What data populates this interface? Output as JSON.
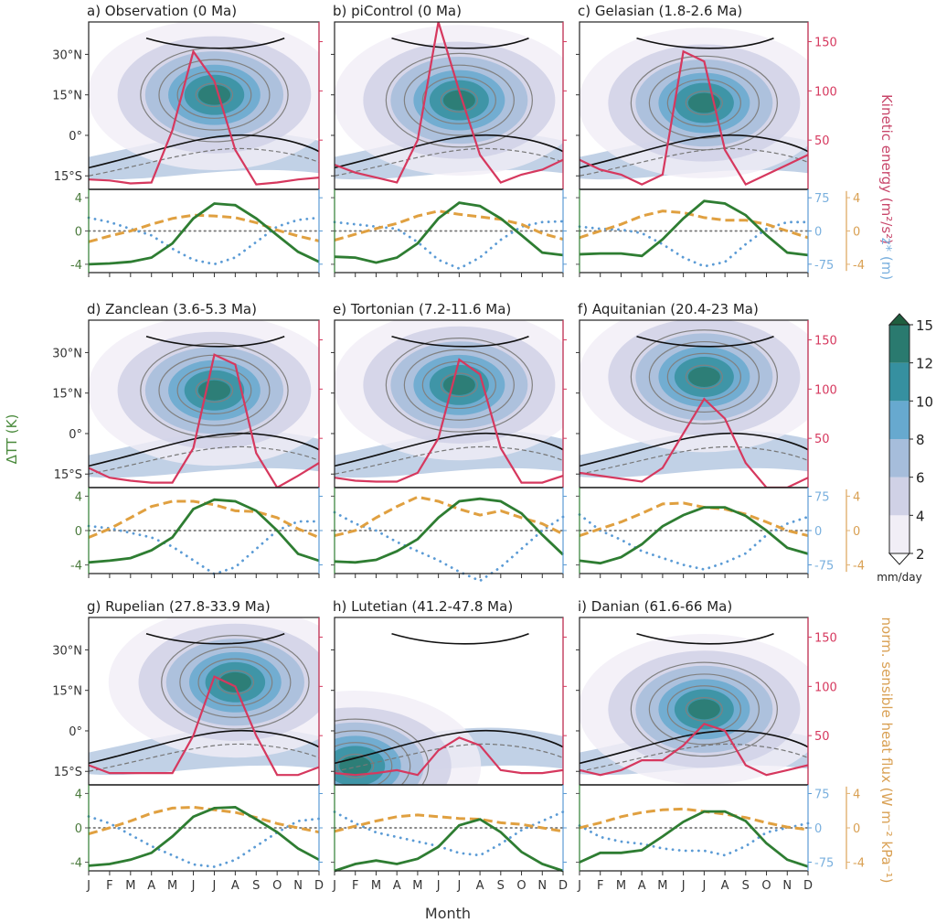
{
  "chart_data": {
    "type": "line",
    "figure_xlabel": "Month",
    "months": [
      "J",
      "F",
      "M",
      "A",
      "M",
      "J",
      "J",
      "A",
      "S",
      "O",
      "N",
      "D"
    ],
    "top_ylabel_ticks": [
      "30°N",
      "15°N",
      "0°",
      "15°S"
    ],
    "top_ylim_lat": [
      -20,
      42
    ],
    "top_lat_ticks": [
      30,
      15,
      0,
      -15
    ],
    "kinetic_energy_axis": {
      "label": "Kinetic energy (m²/s²)",
      "ticks": [
        50,
        100,
        150
      ],
      "ylim": [
        0,
        170
      ],
      "color": "#d6385e"
    },
    "delta_tt_axis": {
      "label": "ΔTT (K)",
      "ticks": [
        -4,
        0,
        4
      ],
      "ylim": [
        -5,
        5
      ],
      "color": "#2e7d32"
    },
    "zstar_axis": {
      "label": "z* (m)",
      "ticks": [
        -75,
        0,
        75
      ],
      "ylim": [
        -94,
        94
      ],
      "color": "#5b9bd5"
    },
    "sensible_heat_axis": {
      "label": "norm. sensible heat flux (W m⁻² kPa⁻¹)",
      "ticks": [
        -4,
        0,
        4
      ],
      "ylim": [
        -5,
        5
      ],
      "color": "#e0a040"
    },
    "colorbar": {
      "label": "mm/day",
      "ticks": [
        2,
        4,
        6,
        8,
        10,
        12,
        15
      ],
      "levels": [
        2,
        4,
        6,
        8,
        10,
        12,
        15
      ],
      "colors": [
        "#f1eef6",
        "#d0d1e6",
        "#a6bddb",
        "#67a9cf",
        "#3690a0",
        "#2a7a6f",
        "#1f5e3f"
      ]
    },
    "panels": [
      {
        "id": "a",
        "title": "a) Observation (0 Ma)",
        "kinetic_energy": [
          10,
          9,
          6,
          7,
          60,
          140,
          110,
          40,
          5,
          7,
          10,
          12
        ],
        "delta_tt": [
          -4.0,
          -3.9,
          -3.7,
          -3.2,
          -1.5,
          1.5,
          3.3,
          3.1,
          1.5,
          -0.5,
          -2.5,
          -3.7
        ],
        "zstar": [
          30,
          20,
          5,
          -10,
          -40,
          -65,
          -75,
          -60,
          -25,
          10,
          25,
          30
        ],
        "sensible_heat": [
          -1.3,
          -0.6,
          0,
          0.8,
          1.5,
          1.9,
          1.8,
          1.6,
          1.0,
          0.1,
          -0.6,
          -1.2
        ],
        "precip_peak": [
          15,
          7
        ]
      },
      {
        "id": "b",
        "title": "b) piControl (0 Ma)",
        "kinetic_energy": [
          25,
          17,
          12,
          7,
          50,
          170,
          100,
          35,
          7,
          15,
          20,
          30
        ],
        "delta_tt": [
          -3.1,
          -3.2,
          -3.8,
          -3.2,
          -1.5,
          1.5,
          3.4,
          3.0,
          1.5,
          -0.5,
          -2.6,
          -2.9
        ],
        "zstar": [
          20,
          15,
          10,
          5,
          -25,
          -65,
          -85,
          -60,
          -20,
          10,
          20,
          22
        ],
        "sensible_heat": [
          -1.1,
          -0.4,
          0.3,
          0.9,
          1.8,
          2.4,
          2.0,
          1.7,
          1.4,
          0.8,
          -0.3,
          -1.0
        ],
        "precip_peak": [
          13,
          7
        ]
      },
      {
        "id": "c",
        "title": "c) Gelasian (1.8-2.6 Ma)",
        "kinetic_energy": [
          30,
          20,
          15,
          5,
          15,
          140,
          130,
          40,
          5,
          15,
          25,
          35
        ],
        "delta_tt": [
          -2.8,
          -2.7,
          -2.7,
          -3.0,
          -1.0,
          1.5,
          3.6,
          3.3,
          1.9,
          -0.5,
          -2.6,
          -2.9
        ],
        "zstar": [
          10,
          5,
          3,
          -5,
          -30,
          -60,
          -80,
          -70,
          -30,
          5,
          20,
          20
        ],
        "sensible_heat": [
          -0.8,
          0.0,
          0.8,
          1.8,
          2.4,
          2.2,
          1.6,
          1.3,
          1.3,
          0.8,
          0.0,
          -0.8
        ],
        "precip_peak": [
          12,
          7
        ]
      },
      {
        "id": "d",
        "title": "d) Zanclean (3.6-5.3 Ma)",
        "kinetic_energy": [
          20,
          10,
          7,
          5,
          5,
          40,
          135,
          125,
          35,
          0,
          12,
          25
        ],
        "delta_tt": [
          -3.7,
          -3.5,
          -3.2,
          -2.3,
          -0.8,
          2.5,
          3.6,
          3.4,
          2.3,
          0.0,
          -2.7,
          -3.5
        ],
        "zstar": [
          10,
          5,
          -5,
          -15,
          -35,
          -65,
          -95,
          -80,
          -40,
          0,
          20,
          20
        ],
        "sensible_heat": [
          -0.8,
          0.2,
          1.5,
          2.8,
          3.4,
          3.4,
          3.0,
          2.3,
          2.2,
          1.5,
          0.2,
          -0.8
        ],
        "precip_peak": [
          16,
          7
        ]
      },
      {
        "id": "e",
        "title": "e) Tortonian (7.2-11.6 Ma)",
        "kinetic_energy": [
          10,
          7,
          6,
          6,
          15,
          50,
          130,
          115,
          40,
          5,
          5,
          12
        ],
        "delta_tt": [
          -3.6,
          -3.7,
          -3.4,
          -2.4,
          -1.0,
          1.5,
          3.4,
          3.7,
          3.4,
          2.0,
          -0.5,
          -2.8
        ],
        "zstar": [
          40,
          15,
          0,
          -25,
          -45,
          -65,
          -90,
          -110,
          -80,
          -40,
          0,
          30
        ],
        "sensible_heat": [
          -0.6,
          0.0,
          1.5,
          2.8,
          3.9,
          3.4,
          2.5,
          1.8,
          2.3,
          1.5,
          0.8,
          -0.4
        ],
        "precip_peak": [
          18,
          7
        ]
      },
      {
        "id": "f",
        "title": "f) Aquitanian (20.4-23 Ma)",
        "kinetic_energy": [
          15,
          12,
          9,
          6,
          20,
          55,
          90,
          70,
          25,
          0,
          0,
          10
        ],
        "delta_tt": [
          -3.5,
          -3.8,
          -3.1,
          -1.6,
          0.5,
          1.8,
          2.7,
          2.7,
          1.7,
          0.0,
          -2.0,
          -2.7
        ],
        "zstar": [
          35,
          0,
          -20,
          -45,
          -60,
          -75,
          -85,
          -70,
          -50,
          -10,
          15,
          30
        ],
        "sensible_heat": [
          -0.6,
          0.2,
          1.0,
          2.0,
          3.1,
          3.2,
          2.7,
          2.5,
          1.9,
          1.0,
          0.0,
          -0.6
        ],
        "precip_peak": [
          21,
          7
        ]
      },
      {
        "id": "g",
        "title": "g) Rupelian (27.8-33.9 Ma)",
        "kinetic_energy": [
          20,
          12,
          12,
          12,
          12,
          50,
          110,
          100,
          50,
          10,
          10,
          18
        ],
        "delta_tt": [
          -4.4,
          -4.2,
          -3.7,
          -2.9,
          -1.0,
          1.3,
          2.3,
          2.4,
          1.0,
          -0.5,
          -2.4,
          -3.7
        ],
        "zstar": [
          25,
          10,
          -15,
          -40,
          -60,
          -80,
          -85,
          -70,
          -40,
          -10,
          15,
          20
        ],
        "sensible_heat": [
          -0.7,
          0.0,
          0.8,
          1.7,
          2.3,
          2.4,
          2.1,
          1.8,
          1.2,
          0.5,
          0.0,
          -0.5
        ],
        "precip_peak": [
          18,
          8
        ]
      },
      {
        "id": "h",
        "title": "h) Lutetian (41.2-47.8 Ma)",
        "kinetic_energy": [
          12,
          10,
          12,
          15,
          10,
          35,
          48,
          40,
          15,
          12,
          12,
          15
        ],
        "delta_tt": [
          -5.0,
          -4.2,
          -3.8,
          -4.2,
          -3.6,
          -2.2,
          0.3,
          1.0,
          -0.5,
          -2.8,
          -4.2,
          -5.0
        ],
        "zstar": [
          35,
          10,
          -10,
          -20,
          -30,
          -40,
          -55,
          -60,
          -35,
          -5,
          15,
          35
        ],
        "sensible_heat": [
          -0.4,
          0.2,
          0.8,
          1.3,
          1.5,
          1.3,
          1.1,
          1.0,
          0.6,
          0.4,
          0.0,
          -0.4
        ],
        "precip_peak": [
          -13,
          2
        ]
      },
      {
        "id": "i",
        "title": "i) Danian (61.6-66 Ma)",
        "kinetic_energy": [
          15,
          10,
          15,
          25,
          25,
          40,
          62,
          55,
          20,
          10,
          15,
          20
        ],
        "delta_tt": [
          -4.0,
          -2.9,
          -2.9,
          -2.6,
          -1.0,
          0.7,
          1.9,
          1.9,
          0.8,
          -1.8,
          -3.7,
          -4.5
        ],
        "zstar": [
          5,
          -20,
          -30,
          -35,
          -45,
          -50,
          -50,
          -60,
          -40,
          -10,
          0,
          10
        ],
        "sensible_heat": [
          0.0,
          0.6,
          1.3,
          1.8,
          2.1,
          2.2,
          1.9,
          1.6,
          1.2,
          0.6,
          0.1,
          -0.2
        ],
        "precip_peak": [
          8,
          7
        ]
      }
    ]
  }
}
